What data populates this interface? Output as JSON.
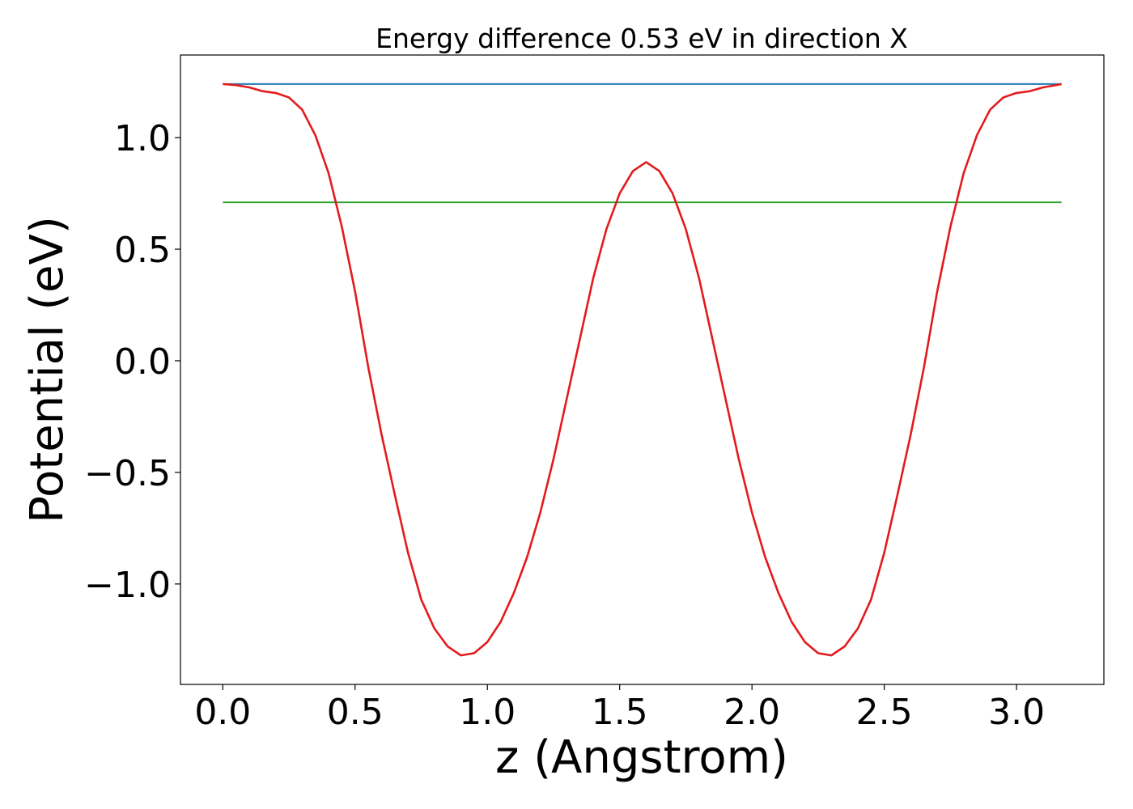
{
  "chart_data": {
    "type": "line",
    "title": "Energy difference 0.53 eV in direction X",
    "xlabel": "z (Angstrom)",
    "ylabel": "Potential (eV)",
    "xlim": [
      -0.16,
      3.33
    ],
    "ylim": [
      -1.45,
      1.37
    ],
    "x_ticks": [
      0.0,
      0.5,
      1.0,
      1.5,
      2.0,
      2.5,
      3.0
    ],
    "x_tick_labels": [
      "0.0",
      "0.5",
      "1.0",
      "1.5",
      "2.0",
      "2.5",
      "3.0"
    ],
    "y_ticks": [
      1.0,
      0.5,
      0.0,
      -0.5,
      -1.0
    ],
    "y_tick_labels": [
      "1.0",
      "0.5",
      "0.0",
      "−0.5",
      "−1.0"
    ],
    "grid": false,
    "series": [
      {
        "color": "#1f77b4",
        "x": [
          0.0,
          3.17
        ],
        "y": [
          1.24,
          1.24
        ]
      },
      {
        "color": "#2ca02c",
        "x": [
          0.0,
          3.17
        ],
        "y": [
          0.71,
          0.71
        ]
      },
      {
        "color": "#e41a1c",
        "x": [
          0.0,
          0.05,
          0.1,
          0.15,
          0.2,
          0.25,
          0.3,
          0.35,
          0.4,
          0.45,
          0.5,
          0.55,
          0.6,
          0.65,
          0.7,
          0.75,
          0.8,
          0.85,
          0.9,
          0.95,
          1.0,
          1.05,
          1.1,
          1.15,
          1.2,
          1.25,
          1.3,
          1.35,
          1.4,
          1.45,
          1.5,
          1.55,
          1.6,
          1.65,
          1.7,
          1.75,
          1.8,
          1.85,
          1.9,
          1.95,
          2.0,
          2.05,
          2.1,
          2.15,
          2.2,
          2.25,
          2.3,
          2.35,
          2.4,
          2.45,
          2.5,
          2.55,
          2.6,
          2.65,
          2.7,
          2.75,
          2.8,
          2.85,
          2.9,
          2.95,
          3.0,
          3.05,
          3.1,
          3.15,
          3.17
        ],
        "y": [
          1.24,
          1.235,
          1.225,
          1.208,
          1.2,
          1.18,
          1.125,
          1.01,
          0.84,
          0.6,
          0.31,
          -0.03,
          -0.33,
          -0.6,
          -0.86,
          -1.07,
          -1.2,
          -1.28,
          -1.32,
          -1.31,
          -1.26,
          -1.17,
          -1.04,
          -0.88,
          -0.68,
          -0.44,
          -0.17,
          0.1,
          0.37,
          0.59,
          0.75,
          0.85,
          0.89,
          0.85,
          0.75,
          0.59,
          0.37,
          0.1,
          -0.17,
          -0.44,
          -0.68,
          -0.88,
          -1.04,
          -1.17,
          -1.26,
          -1.31,
          -1.32,
          -1.28,
          -1.2,
          -1.07,
          -0.86,
          -0.6,
          -0.33,
          -0.03,
          0.31,
          0.6,
          0.84,
          1.01,
          1.125,
          1.18,
          1.2,
          1.208,
          1.225,
          1.235,
          1.24
        ]
      }
    ]
  }
}
